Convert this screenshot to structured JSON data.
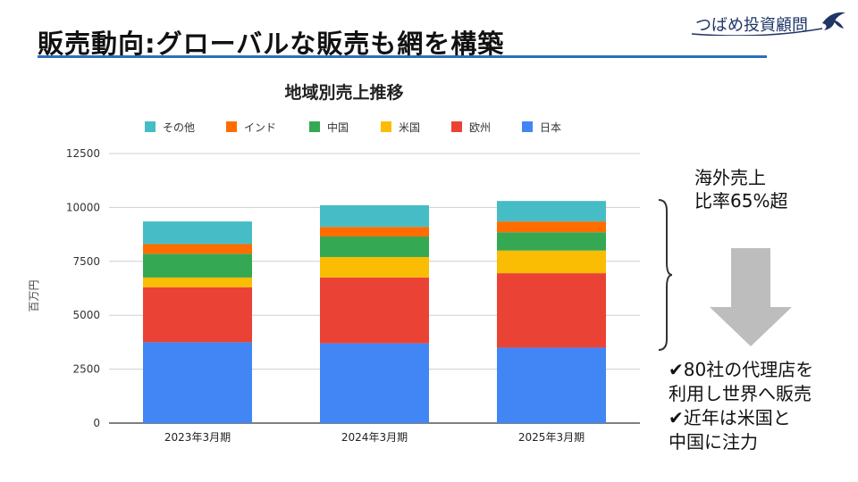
{
  "slide": {
    "title": "販売動向:グローバルな販売も網を構築",
    "brand": "つばめ投資顧問"
  },
  "colors": {
    "title_rule": "#2e6fb8",
    "arrow": "#bdbdbd"
  },
  "notes": {
    "overseas_line1": "海外売上",
    "overseas_line2": "比率65%超",
    "point1_line1": "✔80社の代理店を",
    "point1_line2": "利用し世界へ販売",
    "point2_line1": "✔近年は米国と",
    "point2_line2": "中国に注力"
  },
  "chart_data": {
    "type": "bar",
    "stacked": true,
    "title": "地域別売上推移",
    "xlabel": "",
    "ylabel": "百万円",
    "ylim": [
      0,
      12500
    ],
    "yticks": [
      0,
      2500,
      5000,
      7500,
      10000,
      12500
    ],
    "grid": true,
    "legend_position": "top",
    "categories": [
      "2023年3月期",
      "2024年3月期",
      "2025年3月期"
    ],
    "legend_order": [
      "その他",
      "インド",
      "中国",
      "米国",
      "欧州",
      "日本"
    ],
    "series": [
      {
        "name": "日本",
        "color": "#4285f4",
        "values": [
          3750,
          3700,
          3500
        ]
      },
      {
        "name": "欧州",
        "color": "#ea4335",
        "values": [
          2550,
          3050,
          3450
        ]
      },
      {
        "name": "米国",
        "color": "#fbbc04",
        "values": [
          450,
          950,
          1050
        ]
      },
      {
        "name": "中国",
        "color": "#34a853",
        "values": [
          1100,
          950,
          850
        ]
      },
      {
        "name": "インド",
        "color": "#ff6d01",
        "values": [
          450,
          450,
          500
        ]
      },
      {
        "name": "その他",
        "color": "#46bdc6",
        "values": [
          1050,
          1000,
          950
        ]
      }
    ]
  }
}
